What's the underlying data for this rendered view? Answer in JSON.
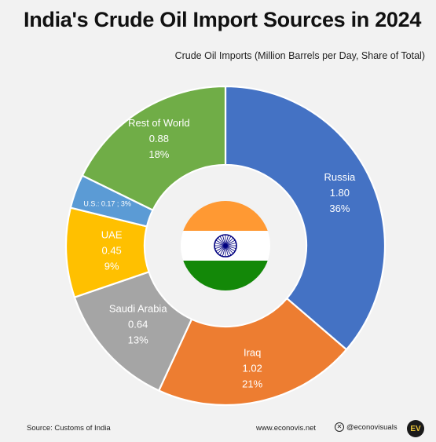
{
  "header": {
    "title": "India's Crude Oil Import Sources in 2024",
    "subtitle": "Crude Oil Imports (Million Barrels per Day, Share of Total)"
  },
  "chart_data": {
    "type": "pie",
    "variant": "donut",
    "title": "India's Crude Oil Import Sources in 2024",
    "subtitle": "Crude Oil Imports (Million Barrels per Day, Share of Total)",
    "start_angle_deg": 0,
    "direction": "clockwise",
    "series": [
      {
        "name": "Russia",
        "value": 1.8,
        "share": 36,
        "value_label": "1.80",
        "share_label": "36%",
        "color": "#4472c4",
        "text_color": "#ffffff"
      },
      {
        "name": "Iraq",
        "value": 1.02,
        "share": 21,
        "value_label": "1.02",
        "share_label": "21%",
        "color": "#ed7d31",
        "text_color": "#ffffff"
      },
      {
        "name": "Saudi Arabia",
        "value": 0.64,
        "share": 13,
        "value_label": "0.64",
        "share_label": "13%",
        "color": "#a5a5a5",
        "text_color": "#ffffff"
      },
      {
        "name": "UAE",
        "value": 0.45,
        "share": 9,
        "value_label": "0.45",
        "share_label": "9%",
        "color": "#ffc000",
        "text_color": "#ffffff"
      },
      {
        "name": "U.S.",
        "value": 0.17,
        "share": 3,
        "value_label": "0.17",
        "share_label": "3%",
        "color": "#5b9bd5",
        "text_color": "#ffffff",
        "inline_label": "U.S.:  0.17 ; 3%"
      },
      {
        "name": "Rest of World",
        "value": 0.88,
        "share": 18,
        "value_label": "0.88",
        "share_label": "18%",
        "color": "#70ad47",
        "text_color": "#ffffff"
      }
    ],
    "center_graphic": "india-flag"
  },
  "flag": {
    "saffron": "#ff9933",
    "white": "#ffffff",
    "green": "#138808",
    "chakra": "#000080"
  },
  "footer": {
    "source": "Source: Customs of India",
    "website": "www.econovis.net",
    "social_handle": "@econovisuals",
    "social_icon": "x-icon",
    "logo_text": "EV"
  }
}
